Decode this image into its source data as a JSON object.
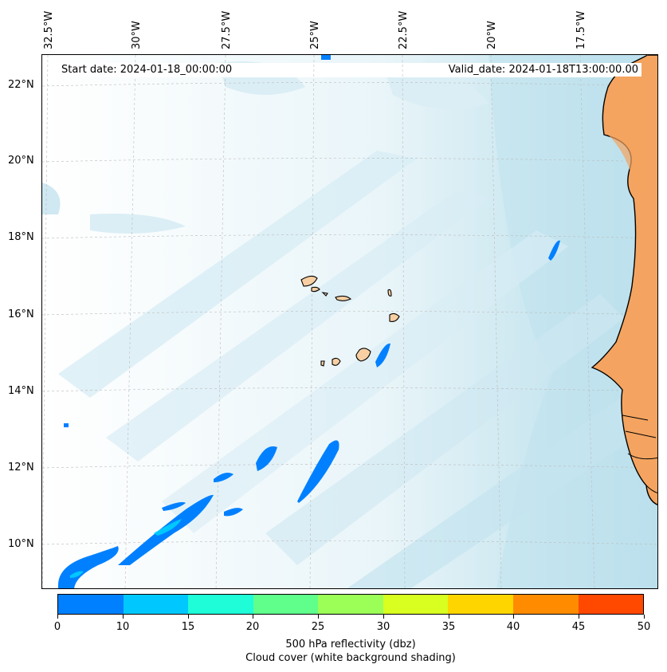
{
  "map": {
    "start_date": "Start date: 2024-01-18_00:00:00",
    "valid_date": "Valid_date: 2024-01-18T13:00:00.00",
    "lon_labels": [
      "32.5°W",
      "30°W",
      "27.5°W",
      "25°W",
      "22.5°W",
      "20°W",
      "17.5°W"
    ],
    "lat_labels": [
      "22°N",
      "20°N",
      "18°N",
      "16°N",
      "14°N",
      "12°N",
      "10°N"
    ],
    "colors": {
      "land_africa": "#f4a460",
      "islands": "#f7cfa3",
      "coastline": "#000000",
      "cloud_light": "#dff0f6",
      "cloud_medium": "#bde0ec",
      "cloud_dark": "#a8d6e6",
      "gridline": "#bbbbbb"
    }
  },
  "colorbar": {
    "tick_labels": [
      "0",
      "10",
      "15",
      "20",
      "25",
      "30",
      "35",
      "40",
      "45",
      "50"
    ],
    "colors": [
      "#0080ff",
      "#00c8ff",
      "#1ffcd8",
      "#60ff8c",
      "#9cff58",
      "#d8ff20",
      "#ffd500",
      "#ff8c00",
      "#ff4800"
    ],
    "label_line1": "500 hPa reflectivity (dbz)",
    "label_line2": "Cloud cover (white background shading)"
  }
}
